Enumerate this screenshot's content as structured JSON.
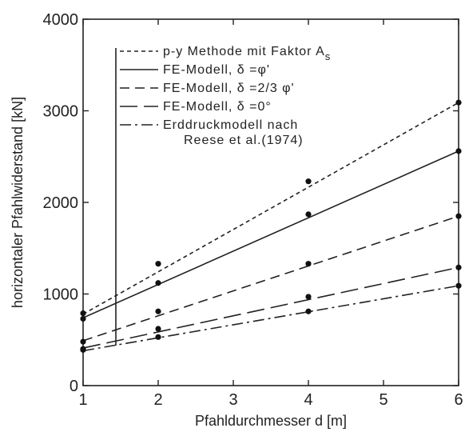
{
  "chart_data": {
    "type": "scatter",
    "xlabel": "Pfahldurchmesser d [m]",
    "ylabel": "horizontaler Pfahlwiderstand [kN]",
    "xlim": [
      1,
      6
    ],
    "ylim": [
      0,
      4000
    ],
    "x_ticks": [
      "1",
      "2",
      "3",
      "4",
      "5",
      "6"
    ],
    "y_ticks": [
      "0",
      "1000",
      "2000",
      "3000",
      "4000"
    ],
    "grid": false,
    "legend_position": "top-right",
    "series": [
      {
        "name": "p-y Methode mit Faktor A_s",
        "legend_text": "p-y Methode mit Faktor A",
        "legend_sub": "s",
        "dash": "short-dash",
        "x": [
          1,
          2,
          4,
          6
        ],
        "y": [
          790,
          1330,
          2230,
          3090
        ],
        "fit": [
          [
            1,
            780
          ],
          [
            6,
            3090
          ]
        ]
      },
      {
        "name": "FE-Modell, δ = φ'",
        "legend_text": "FE-Modell,  δ  =φ'",
        "dash": "solid",
        "x": [
          1,
          2,
          4,
          6
        ],
        "y": [
          730,
          1120,
          1870,
          2560
        ],
        "fit": [
          [
            1,
            740
          ],
          [
            6,
            2560
          ]
        ]
      },
      {
        "name": "FE-Modell, δ = 2/3 φ'",
        "legend_text": "FE-Modell,  δ  =2/3 φ'",
        "dash": "medium-dash",
        "x": [
          1,
          2,
          4,
          6
        ],
        "y": [
          480,
          810,
          1330,
          1850
        ],
        "fit": [
          [
            1,
            490
          ],
          [
            6,
            1850
          ]
        ]
      },
      {
        "name": "FE-Modell, δ = 0°",
        "legend_text": "FE-Modell,  δ  =0°",
        "dash": "long-dash",
        "x": [
          1,
          2,
          4,
          6
        ],
        "y": [
          400,
          620,
          970,
          1290
        ],
        "fit": [
          [
            1,
            410
          ],
          [
            6,
            1290
          ]
        ]
      },
      {
        "name": "Erddruckmodell nach Reese et al. (1974)",
        "legend_text": "Erddruckmodell nach",
        "legend_text_2": "Reese et al.(1974)",
        "dash": "dash-dot",
        "x": [
          1,
          2,
          4,
          6
        ],
        "y": [
          390,
          530,
          810,
          1090
        ],
        "fit": [
          [
            1,
            380
          ],
          [
            6,
            1090
          ]
        ]
      }
    ]
  }
}
